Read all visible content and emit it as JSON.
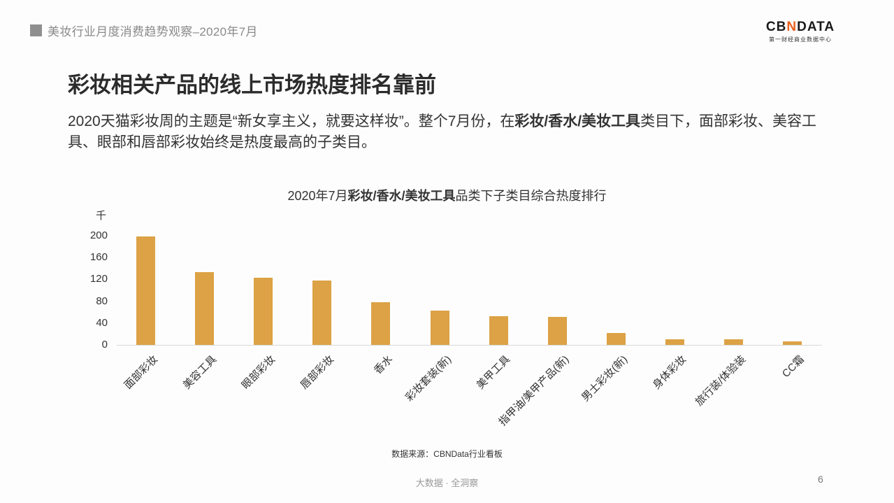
{
  "header": {
    "title": "美妆行业月度消费趋势观察–2020年7月"
  },
  "logo": {
    "brand_pre": "CB",
    "brand_x": "N",
    "brand_post": "DATA",
    "subtitle": "第一财经商业数据中心"
  },
  "main_title": "彩妆相关产品的线上市场热度排名靠前",
  "description": {
    "part1": "2020天猫彩妆周的主题是“新女享主义，就要这样妆”。整个7月份，在",
    "bold": "彩妆/香水/美妆工具",
    "part2": "类目下，面部彩妆、美容工具、眼部和唇部彩妆始终是热度最高的子类目。"
  },
  "chart_title": {
    "pre": "2020年7月",
    "bold": "彩妆/香水/美妆工具",
    "post": "品类下子类目综合热度排行"
  },
  "source": "数据来源：CBNData行业看板",
  "footer": "大数据 · 全洞察",
  "page_number": "6",
  "colors": {
    "bar": "#dca245",
    "axis": "#d9d9d9",
    "logo_accent": "#e8601c"
  },
  "chart_data": {
    "type": "bar",
    "title": "2020年7月彩妆/香水/美妆工具品类下子类目综合热度排行",
    "xlabel": "",
    "ylabel": "千",
    "ylim": [
      0,
      200
    ],
    "yticks": [
      "0",
      "40",
      "80",
      "120",
      "160",
      "200"
    ],
    "grid": false,
    "legend": null,
    "categories": [
      "面部彩妆",
      "美容工具",
      "眼部彩妆",
      "唇部彩妆",
      "香水",
      "彩妆套装(新)",
      "美甲工具",
      "指甲油/美甲产品(新)",
      "男士彩妆(新)",
      "身体彩妆",
      "旅行装/体验装",
      "CC霜"
    ],
    "values": [
      199,
      133,
      123,
      118,
      78,
      63,
      53,
      51,
      22,
      10,
      10,
      6
    ]
  }
}
